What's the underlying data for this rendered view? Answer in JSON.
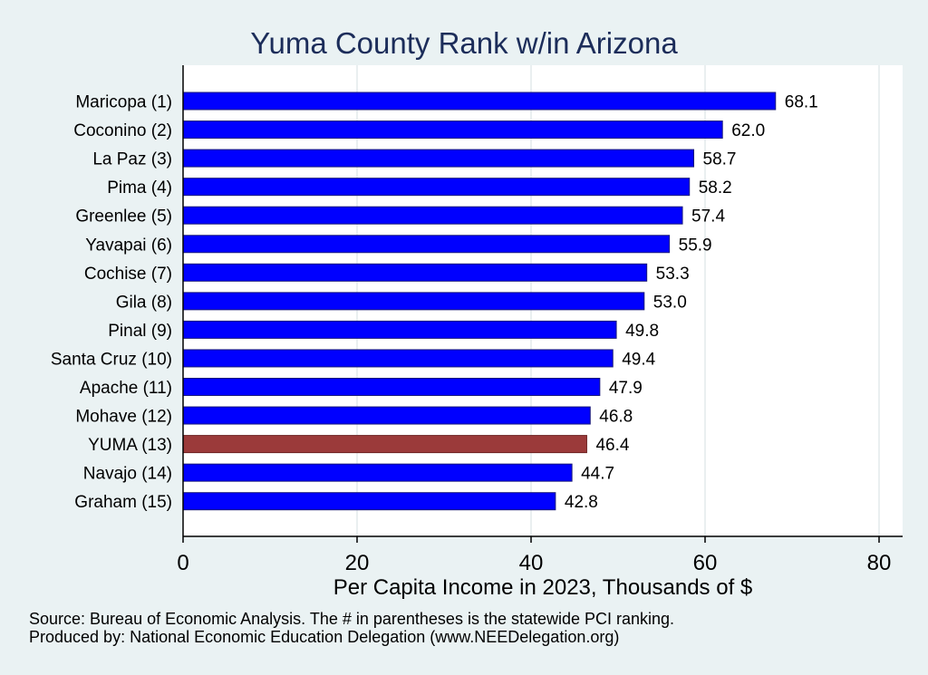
{
  "chart_data": {
    "type": "bar",
    "orientation": "horizontal",
    "title": "Yuma County Rank w/in Arizona",
    "xlabel": "Per Capita Income in 2023, Thousands of $",
    "ylabel": "",
    "xlim": [
      0,
      82
    ],
    "xticks": [
      0,
      20,
      40,
      60,
      80
    ],
    "grid": true,
    "categories": [
      "Maricopa  (1)",
      "Coconino  (2)",
      "La Paz  (3)",
      "Pima  (4)",
      "Greenlee  (5)",
      "Yavapai  (6)",
      "Cochise  (7)",
      "Gila  (8)",
      "Pinal  (9)",
      "Santa Cruz (10)",
      "Apache (11)",
      "Mohave (12)",
      "YUMA (13)",
      "Navajo (14)",
      "Graham (15)"
    ],
    "values": [
      68.1,
      62.0,
      58.7,
      58.2,
      57.4,
      55.9,
      53.3,
      53.0,
      49.8,
      49.4,
      47.9,
      46.8,
      46.4,
      44.7,
      42.8
    ],
    "value_labels": [
      "68.1",
      "62.0",
      "58.7",
      "58.2",
      "57.4",
      "55.9",
      "53.3",
      "53.0",
      "49.8",
      "49.4",
      "47.9",
      "46.8",
      "46.4",
      "44.7",
      "42.8"
    ],
    "highlight_index": 12
  },
  "colors": {
    "background": "#eaf2f3",
    "plot_background": "#ffffff",
    "bar": "#0000ff",
    "bar_outline": "#1a1a7a",
    "highlight": "#9b3a3a",
    "grid": "#e4eaeb",
    "title": "#1c2d5a"
  },
  "footer": {
    "source": "Source: Bureau of Economic Analysis. The # in parentheses is the statewide PCI ranking.",
    "producer": "Produced by: National Economic Education Delegation (www.NEEDelegation.org)"
  }
}
